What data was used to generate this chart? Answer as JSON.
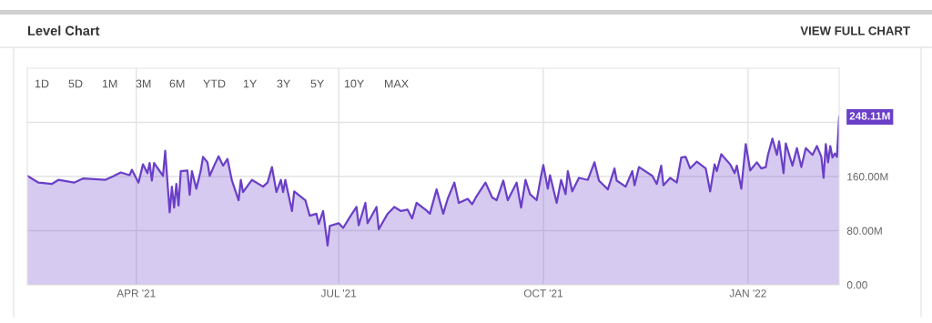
{
  "chart_data": {
    "type": "area",
    "title": "Level Chart",
    "annotations": [
      "VIEW FULL CHART",
      "1D",
      "5D",
      "1M",
      "3M",
      "6M",
      "YTD",
      "1Y",
      "3Y",
      "5Y",
      "10Y",
      "MAX",
      {
        "text": "248.11M",
        "x": "2022-02-11",
        "y": 248.11
      }
    ],
    "x": [
      "2021-02-11",
      "2021-02-16",
      "2021-02-22",
      "2021-02-25",
      "2021-03-04",
      "2021-03-08",
      "2021-03-18",
      "2021-03-22",
      "2021-03-25",
      "2021-03-29",
      "2021-03-30",
      "2021-04-02",
      "2021-04-04",
      "2021-04-06",
      "2021-04-07",
      "2021-04-08",
      "2021-04-09",
      "2021-04-13",
      "2021-04-14",
      "2021-04-16",
      "2021-04-17",
      "2021-04-18",
      "2021-04-19",
      "2021-04-20",
      "2021-04-21",
      "2021-04-24",
      "2021-04-25",
      "2021-04-26",
      "2021-04-28",
      "2021-04-30",
      "2021-05-01",
      "2021-05-03",
      "2021-05-04",
      "2021-05-06",
      "2021-05-08",
      "2021-05-10",
      "2021-05-12",
      "2021-05-14",
      "2021-05-17",
      "2021-05-18",
      "2021-05-19",
      "2021-05-23",
      "2021-05-28",
      "2021-05-30",
      "2021-06-01",
      "2021-06-03",
      "2021-06-05",
      "2021-06-06",
      "2021-06-07",
      "2021-06-10",
      "2021-06-11",
      "2021-06-16",
      "2021-06-18",
      "2021-06-21",
      "2021-06-22",
      "2021-06-24",
      "2021-06-26",
      "2021-06-27",
      "2021-07-01",
      "2021-07-03",
      "2021-07-06",
      "2021-07-09",
      "2021-07-10",
      "2021-07-13",
      "2021-07-14",
      "2021-07-18",
      "2021-07-19",
      "2021-07-23",
      "2021-07-26",
      "2021-07-29",
      "2021-08-01",
      "2021-08-03",
      "2021-08-05",
      "2021-08-09",
      "2021-08-11",
      "2021-08-14",
      "2021-08-17",
      "2021-08-19",
      "2021-08-22",
      "2021-08-24",
      "2021-08-28",
      "2021-08-30",
      "2021-09-01",
      "2021-09-05",
      "2021-09-08",
      "2021-09-10",
      "2021-09-13",
      "2021-09-15",
      "2021-09-19",
      "2021-09-21",
      "2021-09-23",
      "2021-09-25",
      "2021-09-28",
      "2021-09-30",
      "2021-10-01",
      "2021-10-03",
      "2021-10-04",
      "2021-10-07",
      "2021-10-09",
      "2021-10-11",
      "2021-10-12",
      "2021-10-14",
      "2021-10-17",
      "2021-10-21",
      "2021-10-24",
      "2021-10-26",
      "2021-10-30",
      "2021-11-02",
      "2021-11-03",
      "2021-11-07",
      "2021-11-10",
      "2021-11-11",
      "2021-11-13",
      "2021-11-19",
      "2021-11-21",
      "2021-11-23",
      "2021-11-24",
      "2021-11-27",
      "2021-11-30",
      "2021-12-02",
      "2021-12-04",
      "2021-12-06",
      "2021-12-09",
      "2021-12-13",
      "2021-12-15",
      "2021-12-17",
      "2021-12-18",
      "2021-12-20",
      "2021-12-24",
      "2021-12-26",
      "2021-12-27",
      "2021-12-29",
      "2021-12-31",
      "2022-01-02",
      "2022-01-05",
      "2022-01-07",
      "2022-01-09",
      "2022-01-10",
      "2022-01-12",
      "2022-01-14",
      "2022-01-15",
      "2022-01-17",
      "2022-01-18",
      "2022-01-21",
      "2022-01-23",
      "2022-01-25",
      "2022-01-27",
      "2022-01-30",
      "2022-02-01",
      "2022-02-03",
      "2022-02-04",
      "2022-02-05",
      "2022-02-06",
      "2022-02-07",
      "2022-02-08",
      "2022-02-09",
      "2022-02-10",
      "2022-02-11"
    ],
    "series": [
      {
        "color": "#6a3fc8",
        "values": [
          161,
          151,
          149,
          155,
          151,
          157,
          155,
          161,
          166,
          162,
          170,
          151,
          178,
          165,
          180,
          154,
          180,
          161,
          198,
          107,
          145,
          114,
          149,
          117,
          168,
          169,
          133,
          168,
          142,
          169,
          189,
          181,
          161,
          176,
          190,
          176,
          186,
          154,
          125,
          155,
          137,
          155,
          145,
          151,
          174,
          137,
          155,
          137,
          155,
          109,
          138,
          125,
          102,
          105,
          90,
          109,
          58,
          87,
          91,
          84,
          100,
          115,
          88,
          121,
          91,
          115,
          82,
          105,
          115,
          109,
          111,
          98,
          121,
          111,
          105,
          141,
          105,
          127,
          151,
          121,
          127,
          119,
          131,
          151,
          129,
          125,
          154,
          125,
          151,
          114,
          155,
          134,
          125,
          161,
          177,
          142,
          162,
          121,
          155,
          134,
          168,
          138,
          158,
          155,
          181,
          154,
          141,
          172,
          154,
          145,
          168,
          147,
          174,
          161,
          149,
          176,
          147,
          158,
          151,
          188,
          189,
          172,
          182,
          172,
          138,
          178,
          168,
          193,
          178,
          165,
          176,
          142,
          208,
          169,
          181,
          172,
          174,
          192,
          216,
          192,
          212,
          165,
          209,
          176,
          202,
          174,
          202,
          192,
          205,
          189,
          158,
          208,
          181,
          205,
          188,
          194,
          189,
          248.11
        ]
      }
    ],
    "xlim": [
      "2021-02-11",
      "2022-02-11"
    ],
    "xticks": [
      {
        "value": "2021-04-01",
        "label": "APR '21"
      },
      {
        "value": "2021-07-01",
        "label": "JUL '21"
      },
      {
        "value": "2021-10-01",
        "label": "OCT '21"
      },
      {
        "value": "2022-01-01",
        "label": "JAN '22"
      }
    ],
    "ylim": [
      0,
      320
    ],
    "yticks": [
      {
        "value": 0,
        "label": "0.00"
      },
      {
        "value": 80,
        "label": "80.00M"
      },
      {
        "value": 160,
        "label": "160.00M"
      },
      {
        "value": 240,
        "label": null
      }
    ],
    "grid": true
  }
}
